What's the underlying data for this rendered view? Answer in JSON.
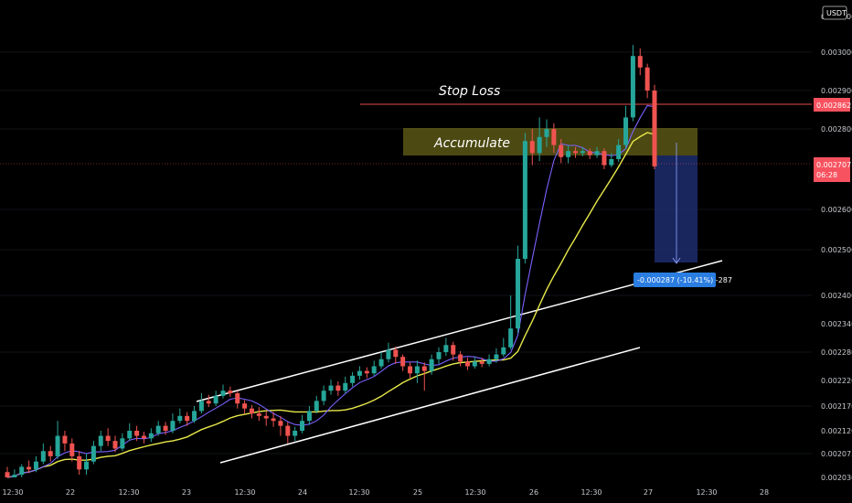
{
  "currency_badge": "USDT",
  "chart_data": {
    "type": "candlestick",
    "x_ticks": [
      "12:30",
      "22",
      "12:30",
      "23",
      "12:30",
      "24",
      "12:30",
      "25",
      "12:30",
      "26",
      "12:30",
      "27",
      "12:30",
      "28"
    ],
    "y_ticks": [
      "0.003000",
      "0.002900",
      "0.002800",
      "0.002600",
      "0.002500",
      "0.002400",
      "0.002340",
      "0.002280",
      "0.002220",
      "0.002170",
      "0.002120",
      "0.002075",
      "0.002030"
    ],
    "top_partial_tick": "0.003100",
    "price_label": {
      "value": "0.002707",
      "countdown": "06:28",
      "color": "#f7525f"
    },
    "stop_loss_price_label": {
      "value": "0.002862",
      "color": "#f7525f"
    },
    "annotations": {
      "stop_loss": "Stop Loss",
      "accumulate": "Accumulate",
      "measure": "-0.000287 (-10.41%) -287"
    },
    "colors": {
      "up": "#26a69a",
      "down": "#ef5350",
      "ma_fast": "#7b61ff",
      "ma_slow": "#e8e84a",
      "channel": "#ffffff"
    },
    "candles": [
      [
        0.00204,
        0.00203,
        0.00205,
        0.002025
      ],
      [
        0.00203,
        0.002035,
        0.002045,
        0.002022
      ],
      [
        0.002035,
        0.00205,
        0.002055,
        0.002028
      ],
      [
        0.00205,
        0.002045,
        0.002062,
        0.002038
      ],
      [
        0.002045,
        0.00206,
        0.00207,
        0.00204
      ],
      [
        0.00206,
        0.00208,
        0.002095,
        0.002055
      ],
      [
        0.00208,
        0.00207,
        0.00209,
        0.00206
      ],
      [
        0.00207,
        0.00211,
        0.00214,
        0.002065
      ],
      [
        0.00211,
        0.002095,
        0.00212,
        0.00208
      ],
      [
        0.002095,
        0.00207,
        0.002105,
        0.00206
      ],
      [
        0.00207,
        0.002045,
        0.00208,
        0.002035
      ],
      [
        0.002045,
        0.00206,
        0.002075,
        0.002035
      ],
      [
        0.00206,
        0.00209,
        0.0021,
        0.002055
      ],
      [
        0.00209,
        0.00211,
        0.00212,
        0.00208
      ],
      [
        0.00211,
        0.0021,
        0.002125,
        0.00209
      ],
      [
        0.0021,
        0.002085,
        0.00211,
        0.002078
      ],
      [
        0.002085,
        0.002105,
        0.002115,
        0.00208
      ],
      [
        0.002105,
        0.00212,
        0.002135,
        0.0021
      ],
      [
        0.00212,
        0.00211,
        0.00213,
        0.0021
      ],
      [
        0.00211,
        0.002105,
        0.002118,
        0.002095
      ],
      [
        0.002105,
        0.002115,
        0.002125,
        0.002098
      ],
      [
        0.002115,
        0.00213,
        0.00214,
        0.00211
      ],
      [
        0.00213,
        0.00212,
        0.002138,
        0.002112
      ],
      [
        0.00212,
        0.00214,
        0.002155,
        0.002115
      ],
      [
        0.00214,
        0.00215,
        0.002165,
        0.002135
      ],
      [
        0.00215,
        0.00214,
        0.002158,
        0.00213
      ],
      [
        0.00214,
        0.00216,
        0.00217,
        0.002136
      ],
      [
        0.00216,
        0.00218,
        0.002195,
        0.002155
      ],
      [
        0.00218,
        0.002175,
        0.002192,
        0.002168
      ],
      [
        0.002175,
        0.00219,
        0.0022,
        0.00217
      ],
      [
        0.00219,
        0.0022,
        0.002212,
        0.002185
      ],
      [
        0.0022,
        0.002195,
        0.002208,
        0.002188
      ],
      [
        0.002195,
        0.002175,
        0.0022,
        0.002165
      ],
      [
        0.002175,
        0.002165,
        0.002182,
        0.002155
      ],
      [
        0.002165,
        0.002155,
        0.002172,
        0.002145
      ],
      [
        0.002155,
        0.00215,
        0.002168,
        0.00214
      ],
      [
        0.00215,
        0.002145,
        0.00216,
        0.00213
      ],
      [
        0.002145,
        0.00214,
        0.002158,
        0.002128
      ],
      [
        0.00214,
        0.00213,
        0.00215,
        0.00211
      ],
      [
        0.00213,
        0.00211,
        0.002138,
        0.002095
      ],
      [
        0.00211,
        0.00212,
        0.002128,
        0.0021
      ],
      [
        0.00212,
        0.00214,
        0.002152,
        0.002115
      ],
      [
        0.00214,
        0.00216,
        0.00217,
        0.002132
      ],
      [
        0.00216,
        0.00218,
        0.00219,
        0.002155
      ],
      [
        0.00218,
        0.0022,
        0.00221,
        0.002172
      ],
      [
        0.0022,
        0.00221,
        0.002222,
        0.002192
      ],
      [
        0.00221,
        0.0022,
        0.002218,
        0.00219
      ],
      [
        0.0022,
        0.002215,
        0.002228,
        0.002195
      ],
      [
        0.002215,
        0.00223,
        0.002238,
        0.002208
      ],
      [
        0.00223,
        0.00224,
        0.00225,
        0.002222
      ],
      [
        0.00224,
        0.002235,
        0.002248,
        0.002225
      ],
      [
        0.002235,
        0.00225,
        0.002262,
        0.00223
      ],
      [
        0.00225,
        0.002265,
        0.00228,
        0.002245
      ],
      [
        0.002265,
        0.002285,
        0.0023,
        0.002258
      ],
      [
        0.002285,
        0.00227,
        0.002292,
        0.002255
      ],
      [
        0.00227,
        0.00225,
        0.002275,
        0.00224
      ],
      [
        0.00225,
        0.002235,
        0.002258,
        0.002225
      ],
      [
        0.002235,
        0.00225,
        0.002262,
        0.002215
      ],
      [
        0.00225,
        0.00224,
        0.002258,
        0.0022
      ],
      [
        0.00224,
        0.002265,
        0.002275,
        0.002232
      ],
      [
        0.002265,
        0.00228,
        0.00229,
        0.002255
      ],
      [
        0.00228,
        0.002295,
        0.00231,
        0.002272
      ],
      [
        0.002295,
        0.002275,
        0.002302,
        0.002262
      ],
      [
        0.002275,
        0.00226,
        0.002282,
        0.00225
      ],
      [
        0.00226,
        0.00225,
        0.002268,
        0.002242
      ],
      [
        0.00225,
        0.00226,
        0.00227,
        0.002245
      ],
      [
        0.00226,
        0.002255,
        0.002268,
        0.002248
      ],
      [
        0.002255,
        0.002265,
        0.002275,
        0.00225
      ],
      [
        0.002265,
        0.002275,
        0.002288,
        0.002258
      ],
      [
        0.002275,
        0.00229,
        0.00231,
        0.00227
      ],
      [
        0.00229,
        0.00233,
        0.0024,
        0.002285
      ],
      [
        0.00233,
        0.00248,
        0.00251,
        0.00232
      ],
      [
        0.00248,
        0.00277,
        0.00279,
        0.00247
      ],
      [
        0.00277,
        0.00274,
        0.0028,
        0.00271
      ],
      [
        0.00274,
        0.00278,
        0.00283,
        0.00272
      ],
      [
        0.00278,
        0.0028,
        0.002825,
        0.002755
      ],
      [
        0.0028,
        0.00276,
        0.002815,
        0.00274
      ],
      [
        0.00276,
        0.00273,
        0.002775,
        0.002715
      ],
      [
        0.00273,
        0.002745,
        0.00276,
        0.002715
      ],
      [
        0.002745,
        0.00274,
        0.002755,
        0.002728
      ],
      [
        0.00274,
        0.002745,
        0.002755,
        0.002732
      ],
      [
        0.002745,
        0.002735,
        0.002752,
        0.002725
      ],
      [
        0.002735,
        0.002745,
        0.002755,
        0.002728
      ],
      [
        0.002745,
        0.00271,
        0.002752,
        0.0027
      ],
      [
        0.00271,
        0.002725,
        0.00274,
        0.002705
      ],
      [
        0.002725,
        0.00276,
        0.002775,
        0.002718
      ],
      [
        0.00276,
        0.00283,
        0.00286,
        0.00275
      ],
      [
        0.00283,
        0.00299,
        0.00302,
        0.00282
      ],
      [
        0.00299,
        0.00296,
        0.00301,
        0.00294
      ],
      [
        0.00296,
        0.0029,
        0.00297,
        0.00288
      ],
      [
        0.0029,
        0.002707,
        0.002915,
        0.0027
      ]
    ]
  }
}
